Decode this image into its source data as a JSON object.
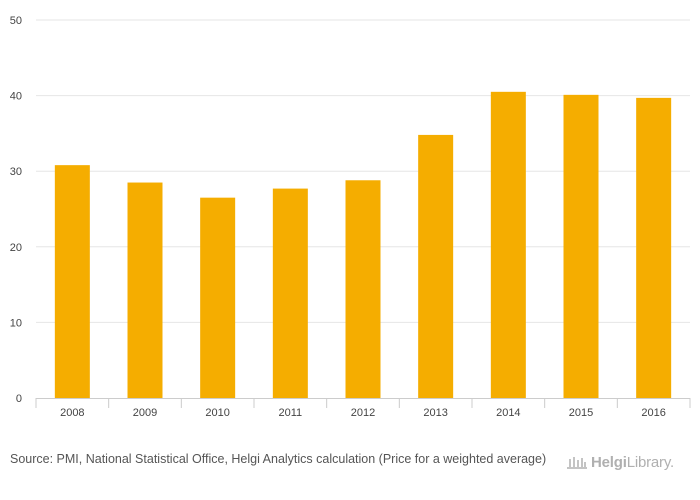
{
  "chart_data": {
    "type": "bar",
    "title": "",
    "xlabel": "",
    "ylabel": "",
    "categories": [
      "2008",
      "2009",
      "2010",
      "2011",
      "2012",
      "2013",
      "2014",
      "2015",
      "2016"
    ],
    "values": [
      30.8,
      28.5,
      26.5,
      27.7,
      28.8,
      34.8,
      40.5,
      40.1,
      39.7
    ],
    "ylim": [
      0,
      50
    ],
    "yticks": [
      "0",
      "10",
      "20",
      "30",
      "40",
      "50"
    ],
    "grid": true,
    "bar_color": "#f5ad00",
    "grid_color": "#e6e6e6"
  },
  "footer": {
    "source": "Source: PMI, National Statistical Office, Helgi Analytics calculation (Price for a weighted average)",
    "logo_text_bold": "Helgi",
    "logo_text_rest": "Library."
  }
}
